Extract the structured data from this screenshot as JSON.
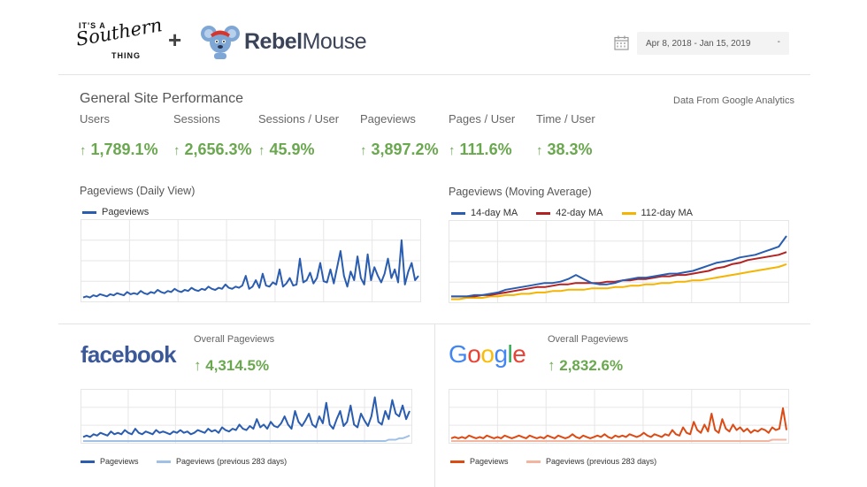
{
  "header": {
    "brand1": {
      "line1": "IT'S A",
      "line2": "Southern",
      "line3": "THING"
    },
    "plus": "+",
    "brand2": {
      "bold": "Rebel",
      "regular": "Mouse"
    },
    "date_range": "Apr 8, 2018 - Jan 15, 2019",
    "dropdown_caret": "-"
  },
  "site": {
    "title": "General Site Performance",
    "source": "Data From Google Analytics",
    "metrics": [
      {
        "label": "Users",
        "value": "1,789.1%"
      },
      {
        "label": "Sessions",
        "value": "2,656.3%"
      },
      {
        "label": "Sessions / User",
        "value": "45.9%"
      },
      {
        "label": "Pageviews",
        "value": "3,897.2%"
      },
      {
        "label": "Pages / User",
        "value": "111.6%"
      },
      {
        "label": "Time / User",
        "value": "38.3%"
      }
    ],
    "arrow": "↑"
  },
  "charts": {
    "daily": {
      "title": "Pageviews (Daily View)",
      "legend": [
        "Pageviews"
      ]
    },
    "moving": {
      "title": "Pageviews (Moving Average)",
      "legend": [
        "14-day MA",
        "42-day MA",
        "112-day MA"
      ]
    }
  },
  "facebook": {
    "logo": "facebook",
    "label": "Overall Pageviews",
    "value": "4,314.5%",
    "legend": [
      "Pageviews",
      "Pageviews (previous 283 days)"
    ]
  },
  "google": {
    "logo": [
      "G",
      "o",
      "o",
      "g",
      "l",
      "e"
    ],
    "label": "Overall Pageviews",
    "value": "2,832.6%",
    "legend": [
      "Pageviews",
      "Pageviews (previous 283 days)"
    ]
  },
  "colors": {
    "blue": "#2a5db0",
    "lightblue": "#9fc1e8",
    "red": "#b22222",
    "yellow": "#f4b400",
    "orange": "#dd4b15",
    "lightorange": "#f2b5a0",
    "green": "#6aa84f"
  },
  "chart_data": [
    {
      "type": "line",
      "title": "Pageviews (Daily View)",
      "series": [
        {
          "name": "Pageviews",
          "values": [
            2,
            3,
            2,
            4,
            3,
            5,
            4,
            3,
            5,
            4,
            6,
            5,
            4,
            7,
            5,
            6,
            5,
            8,
            6,
            5,
            7,
            6,
            9,
            7,
            6,
            8,
            7,
            10,
            8,
            7,
            9,
            8,
            11,
            9,
            8,
            10,
            9,
            12,
            10,
            9,
            11,
            10,
            14,
            11,
            10,
            12,
            11,
            13,
            22,
            10,
            12,
            18,
            11,
            24,
            13,
            12,
            16,
            14,
            28,
            12,
            15,
            20,
            13,
            14,
            38,
            16,
            18,
            25,
            15,
            20,
            34,
            17,
            16,
            28,
            15,
            30,
            45,
            22,
            12,
            26,
            18,
            40,
            20,
            14,
            42,
            18,
            30,
            22,
            16,
            24,
            38,
            20,
            28,
            16,
            55,
            14,
            26,
            34,
            18,
            22
          ]
        }
      ]
    },
    {
      "type": "line",
      "title": "Pageviews (Moving Average)",
      "series": [
        {
          "name": "14-day MA",
          "values": [
            3,
            3,
            3,
            4,
            4,
            5,
            6,
            8,
            9,
            10,
            11,
            12,
            13,
            13,
            14,
            16,
            19,
            16,
            13,
            12,
            12,
            13,
            15,
            16,
            17,
            17,
            18,
            19,
            20,
            20,
            21,
            22,
            24,
            26,
            28,
            29,
            30,
            32,
            33,
            34,
            36,
            38,
            40,
            48
          ]
        },
        {
          "name": "42-day MA",
          "values": [
            3,
            3,
            3,
            3,
            4,
            4,
            5,
            6,
            7,
            8,
            9,
            10,
            10,
            11,
            12,
            12,
            13,
            13,
            13,
            13,
            14,
            14,
            15,
            15,
            16,
            16,
            17,
            18,
            18,
            19,
            19,
            20,
            21,
            22,
            24,
            25,
            27,
            28,
            30,
            31,
            32,
            33,
            34,
            36
          ]
        },
        {
          "name": "112-day MA",
          "values": [
            1,
            1,
            2,
            2,
            2,
            3,
            3,
            4,
            4,
            5,
            5,
            6,
            6,
            7,
            7,
            8,
            8,
            8,
            9,
            9,
            9,
            10,
            10,
            11,
            11,
            12,
            12,
            13,
            13,
            14,
            14,
            15,
            15,
            16,
            17,
            18,
            19,
            20,
            21,
            22,
            23,
            24,
            25,
            27
          ]
        }
      ]
    },
    {
      "type": "line",
      "title": "Facebook Overall Pageviews",
      "series": [
        {
          "name": "Pageviews",
          "values": [
            3,
            4,
            3,
            5,
            4,
            6,
            5,
            4,
            7,
            5,
            6,
            5,
            8,
            6,
            5,
            9,
            6,
            5,
            7,
            6,
            5,
            8,
            6,
            7,
            6,
            5,
            7,
            6,
            8,
            6,
            7,
            5,
            6,
            8,
            7,
            6,
            9,
            7,
            8,
            6,
            10,
            8,
            7,
            9,
            8,
            12,
            9,
            8,
            11,
            9,
            16,
            10,
            12,
            9,
            14,
            11,
            10,
            13,
            18,
            12,
            9,
            22,
            14,
            11,
            15,
            20,
            12,
            10,
            18,
            13,
            28,
            12,
            9,
            16,
            22,
            11,
            14,
            26,
            12,
            10,
            20,
            15,
            11,
            18,
            32,
            14,
            12,
            22,
            16,
            30,
            20,
            18,
            26,
            16,
            22
          ]
        },
        {
          "name": "Pageviews (previous 283 days)",
          "values": [
            0,
            0,
            0,
            0,
            0,
            0,
            0,
            0,
            0,
            0,
            0,
            0,
            0,
            0,
            0,
            0,
            0,
            0,
            0,
            0,
            0,
            0,
            0,
            0,
            0,
            0,
            0,
            0,
            0,
            0,
            0,
            0,
            0,
            0,
            0,
            0,
            0,
            0,
            0,
            0,
            0,
            0,
            0,
            0,
            0,
            0,
            0,
            0,
            0,
            0,
            0,
            0,
            0,
            0,
            0,
            0,
            0,
            0,
            0,
            0,
            0,
            0,
            0,
            0,
            0,
            0,
            0,
            0,
            0,
            0,
            0,
            0,
            0,
            0,
            0,
            0,
            0,
            0,
            0,
            0,
            0,
            0,
            0,
            0,
            0,
            0,
            0,
            0,
            1,
            1,
            1,
            2,
            2,
            3,
            4
          ]
        }
      ]
    },
    {
      "type": "line",
      "title": "Google Overall Pageviews",
      "series": [
        {
          "name": "Pageviews",
          "values": [
            2,
            3,
            2,
            3,
            2,
            4,
            3,
            2,
            3,
            2,
            4,
            3,
            2,
            3,
            2,
            4,
            3,
            2,
            3,
            4,
            3,
            2,
            4,
            3,
            2,
            3,
            2,
            4,
            3,
            2,
            4,
            3,
            2,
            3,
            5,
            3,
            2,
            4,
            3,
            2,
            3,
            4,
            3,
            5,
            3,
            2,
            4,
            3,
            4,
            3,
            5,
            4,
            3,
            4,
            6,
            4,
            3,
            5,
            4,
            3,
            5,
            4,
            8,
            5,
            4,
            10,
            6,
            5,
            14,
            8,
            6,
            12,
            7,
            20,
            8,
            6,
            16,
            9,
            7,
            12,
            8,
            10,
            7,
            9,
            6,
            8,
            7,
            9,
            8,
            6,
            10,
            8,
            9,
            24,
            8
          ]
        },
        {
          "name": "Pageviews (previous 283 days)",
          "values": [
            0,
            0,
            0,
            0,
            0,
            0,
            0,
            0,
            0,
            0,
            0,
            0,
            0,
            0,
            0,
            0,
            0,
            0,
            0,
            0,
            0,
            0,
            0,
            0,
            0,
            0,
            0,
            0,
            0,
            0,
            0,
            0,
            0,
            0,
            0,
            0,
            0,
            0,
            0,
            0,
            0,
            0,
            0,
            0,
            0,
            0,
            0,
            0,
            0,
            0,
            0,
            0,
            0,
            0,
            0,
            0,
            0,
            0,
            0,
            0,
            0,
            0,
            0,
            0,
            0,
            0,
            0,
            0,
            0,
            0,
            0,
            0,
            0,
            0,
            0,
            0,
            0,
            0,
            0,
            0,
            0,
            0,
            0,
            0,
            0,
            0,
            0,
            0,
            0,
            0,
            1,
            1,
            1,
            1,
            1
          ]
        }
      ]
    }
  ]
}
